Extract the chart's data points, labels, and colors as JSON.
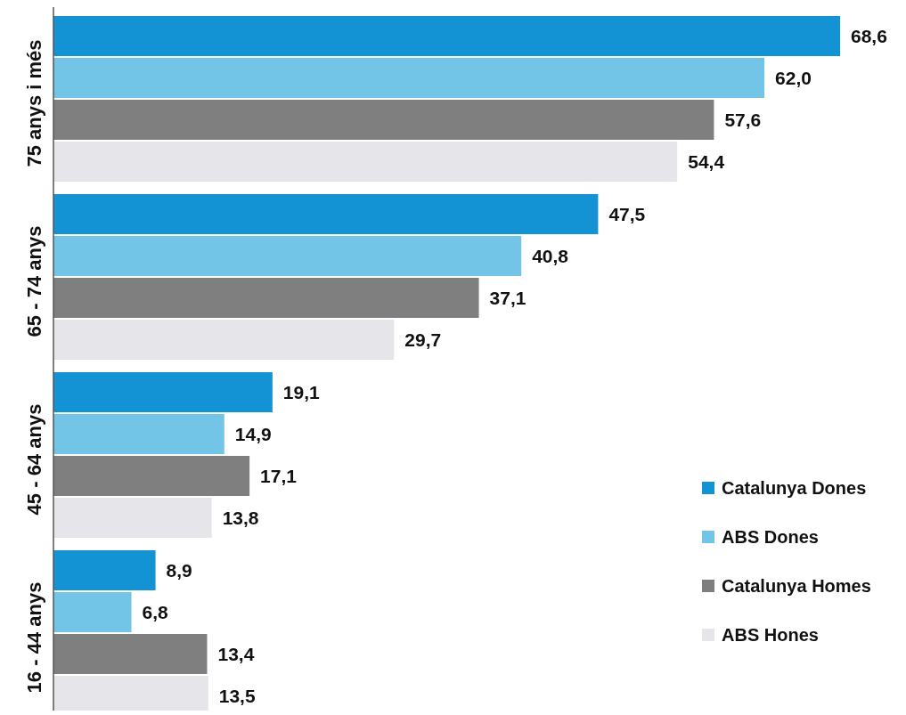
{
  "chart_data": {
    "type": "bar",
    "orientation": "horizontal",
    "categories": [
      "75 anys i més",
      "65 - 74 anys",
      "45 - 64 anys",
      "16 - 44 anys"
    ],
    "series": [
      {
        "name": "Catalunya Dones",
        "color": "#1493d4",
        "values": [
          68.6,
          47.5,
          19.1,
          8.9
        ],
        "value_labels": [
          "68,6",
          "47,5",
          "19,1",
          "8,9"
        ]
      },
      {
        "name": "ABS Dones",
        "color": "#72c5e6",
        "values": [
          62.0,
          40.8,
          14.9,
          6.8
        ],
        "value_labels": [
          "62,0",
          "40,8",
          "14,9",
          "6,8"
        ]
      },
      {
        "name": "Catalunya Homes",
        "color": "#7f7f7f",
        "values": [
          57.6,
          37.1,
          17.1,
          13.4
        ],
        "value_labels": [
          "57,6",
          "37,1",
          "17,1",
          "13,4"
        ]
      },
      {
        "name": "ABS Hones",
        "color": "#e6e6ea",
        "values": [
          54.4,
          29.7,
          13.8,
          13.5
        ],
        "value_labels": [
          "54,4",
          "29,7",
          "13,8",
          "13,5"
        ]
      }
    ],
    "legend": "bottom right"
  }
}
